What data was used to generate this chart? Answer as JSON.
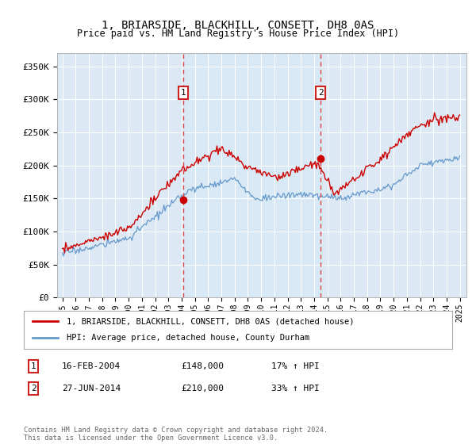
{
  "title": "1, BRIARSIDE, BLACKHILL, CONSETT, DH8 0AS",
  "subtitle": "Price paid vs. HM Land Registry's House Price Index (HPI)",
  "legend_entries": [
    "1, BRIARSIDE, BLACKHILL, CONSETT, DH8 0AS (detached house)",
    "HPI: Average price, detached house, County Durham"
  ],
  "sale1_label": "1",
  "sale1_date": "16-FEB-2004",
  "sale1_price": 148000,
  "sale1_hpi": "17% ↑ HPI",
  "sale1_x": 2004.12,
  "sale2_label": "2",
  "sale2_date": "27-JUN-2014",
  "sale2_price": 210000,
  "sale2_hpi": "33% ↑ HPI",
  "sale2_x": 2014.49,
  "red_color": "#cc0000",
  "blue_color": "#6699cc",
  "shade_color": "#d8e8f5",
  "dashed_color": "#dd4444",
  "footnote": "Contains HM Land Registry data © Crown copyright and database right 2024.\nThis data is licensed under the Open Government Licence v3.0.",
  "ylim": [
    0,
    370000
  ],
  "xlim": [
    1994.6,
    2025.5
  ],
  "yticks": [
    0,
    50000,
    100000,
    150000,
    200000,
    250000,
    300000,
    350000
  ],
  "xticks": [
    1995,
    1996,
    1997,
    1998,
    1999,
    2000,
    2001,
    2002,
    2003,
    2004,
    2005,
    2006,
    2007,
    2008,
    2009,
    2010,
    2011,
    2012,
    2013,
    2014,
    2015,
    2016,
    2017,
    2018,
    2019,
    2020,
    2021,
    2022,
    2023,
    2024,
    2025
  ],
  "background_color": "#dce8f4",
  "plot_bg": "#dce8f4"
}
